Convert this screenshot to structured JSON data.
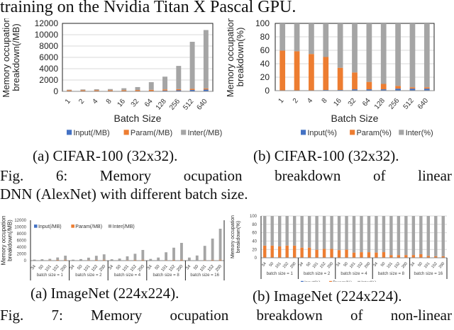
{
  "page": {
    "top_line": "training on the Nvidia Titan X Pascal GPU.",
    "fig6": {
      "sub_a": "(a) CIFAR-100 (32x32).",
      "sub_b": "(b) CIFAR-100 (32x32).",
      "line1_words": [
        "Fig.",
        "6:",
        "Memory",
        "ocupation",
        "breakdown",
        "of",
        "linear"
      ],
      "line2": "DNN (AlexNet) with different batch size."
    },
    "fig7": {
      "sub_a": "(a) ImageNet (224x224).",
      "sub_b": "(b) ImageNet (224x224).",
      "line1_words": [
        "Fig.",
        "7:",
        "Memory",
        "ocupation",
        "breakdown",
        "of",
        "non-linear"
      ]
    }
  },
  "colors": {
    "input": "#4472c4",
    "param": "#ed7d31",
    "inter": "#a5a5a5",
    "grid": "#d9d9d9",
    "axis": "#000000"
  },
  "chart_data": [
    {
      "id": "fig6a",
      "type": "bar",
      "stacked": true,
      "title": "",
      "xlabel": "Batch Size",
      "ylabel": "Memory occupation breakdown(/MB)",
      "ylim": [
        0,
        12000
      ],
      "yticks": [
        0,
        2000,
        4000,
        6000,
        8000,
        10000,
        12000
      ],
      "categories": [
        "1",
        "2",
        "4",
        "8",
        "16",
        "32",
        "64",
        "128",
        "256",
        "512",
        "640"
      ],
      "series": [
        {
          "name": "Input(/MB)",
          "values": [
            2,
            3,
            5,
            9,
            18,
            36,
            72,
            144,
            190,
            250,
            320
          ]
        },
        {
          "name": "Param(/MB)",
          "values": [
            200,
            200,
            200,
            200,
            200,
            200,
            200,
            200,
            200,
            200,
            200
          ]
        },
        {
          "name": "Inter(/MB)",
          "values": [
            100,
            140,
            170,
            200,
            330,
            520,
            1350,
            2250,
            4100,
            8300,
            10300
          ]
        }
      ],
      "legend": [
        "Input(/MB)",
        "Param(/MB)",
        "Inter(/MB)"
      ],
      "legend_position": "bottom",
      "grid": true
    },
    {
      "id": "fig6b",
      "type": "bar",
      "stacked": true,
      "xlabel": "Batch Size",
      "ylabel": "Memory occupation breakdown(%)",
      "ylim": [
        0,
        100
      ],
      "yticks": [
        0,
        20,
        40,
        60,
        80,
        100
      ],
      "categories": [
        "1",
        "2",
        "4",
        "8",
        "16",
        "32",
        "64",
        "128",
        "256",
        "512",
        "640"
      ],
      "series": [
        {
          "name": "Input(%)",
          "values": [
            0.5,
            0.5,
            0.5,
            1,
            1,
            2,
            2,
            2,
            3,
            3,
            3
          ]
        },
        {
          "name": "Param(%)",
          "values": [
            59,
            58,
            54,
            49,
            33,
            25,
            11,
            8,
            4,
            2,
            2
          ]
        },
        {
          "name": "Inter(%)",
          "values": [
            40.5,
            41.5,
            45.5,
            50,
            66,
            73,
            87,
            90,
            93,
            95,
            95
          ]
        }
      ],
      "legend": [
        "Input(%)",
        "Param(%)",
        "Inter(%)"
      ],
      "legend_position": "bottom",
      "grid": true
    },
    {
      "id": "fig7a",
      "type": "bar",
      "stacked": true,
      "ylabel": "Memory occupation breakdown(/MB)",
      "ylim": [
        0,
        12000
      ],
      "yticks": [
        0,
        2000,
        4000,
        6000,
        8000,
        10000,
        12000
      ],
      "groups": [
        "batch size = 1",
        "batch size = 2",
        "batch size = 4",
        "batch size = 8",
        "batch size = 16"
      ],
      "categories": [
        "34",
        "50",
        "101",
        "152",
        "200"
      ],
      "series": [
        {
          "name": "Input(/MB)",
          "values": [
            1,
            1,
            1,
            1,
            1,
            2,
            2,
            2,
            2,
            2,
            4,
            4,
            4,
            4,
            4,
            8,
            8,
            8,
            8,
            8,
            16,
            16,
            16,
            16,
            16
          ]
        },
        {
          "name": "Param(/MB)",
          "values": [
            90,
            100,
            170,
            230,
            260,
            90,
            100,
            170,
            230,
            260,
            90,
            100,
            170,
            230,
            260,
            90,
            100,
            170,
            230,
            260,
            90,
            100,
            170,
            230,
            260
          ]
        },
        {
          "name": "Inter(/MB)",
          "values": [
            200,
            300,
            350,
            700,
            1200,
            180,
            350,
            700,
            1200,
            1600,
            300,
            500,
            1100,
            1800,
            2900,
            400,
            800,
            2300,
            3600,
            5000,
            800,
            1400,
            4200,
            6300,
            9200
          ]
        }
      ],
      "legend": [
        "Input(/MB)",
        "Param(/MB)",
        "Inter(/MB)"
      ],
      "legend_position": "top",
      "grid": false
    },
    {
      "id": "fig7b",
      "type": "bar",
      "stacked": true,
      "ylabel": "Memory occupation breakdown(%)",
      "ylim": [
        0,
        100
      ],
      "yticks": [
        0,
        20,
        40,
        60,
        80,
        100
      ],
      "groups": [
        "batch size = 1",
        "batch size = 2",
        "batch size = 4",
        "batch size = 8",
        "batch size = 16"
      ],
      "categories": [
        "34",
        "50",
        "101",
        "152",
        "200"
      ],
      "series": [
        {
          "name": "Input(%)",
          "values": [
            0.2,
            0.2,
            0.2,
            0.2,
            0.2,
            0.3,
            0.3,
            0.3,
            0.3,
            0.3,
            0.4,
            0.4,
            0.4,
            0.4,
            0.4,
            0.5,
            0.5,
            0.5,
            0.5,
            0.5,
            0.6,
            0.6,
            0.6,
            0.6,
            0.6
          ]
        },
        {
          "name": "Param(%)",
          "values": [
            29,
            29,
            27,
            29,
            29,
            24,
            24,
            19,
            21,
            21,
            18,
            19,
            12,
            13,
            13,
            12,
            13,
            6,
            6,
            6,
            6,
            8,
            4,
            3,
            3
          ]
        },
        {
          "name": "Inter(%)",
          "values": [
            70.8,
            70.8,
            72.8,
            70.8,
            70.8,
            75.7,
            75.7,
            80.7,
            78.7,
            78.7,
            81.6,
            80.6,
            87.6,
            86.6,
            86.6,
            87.5,
            86.5,
            93.5,
            93.5,
            93.5,
            93.4,
            91.4,
            95.4,
            96.4,
            96.4
          ]
        }
      ],
      "legend": [
        "Input(%)",
        "Param(%)",
        "Inter(%)"
      ],
      "legend_position": "bottom",
      "grid": true
    }
  ]
}
